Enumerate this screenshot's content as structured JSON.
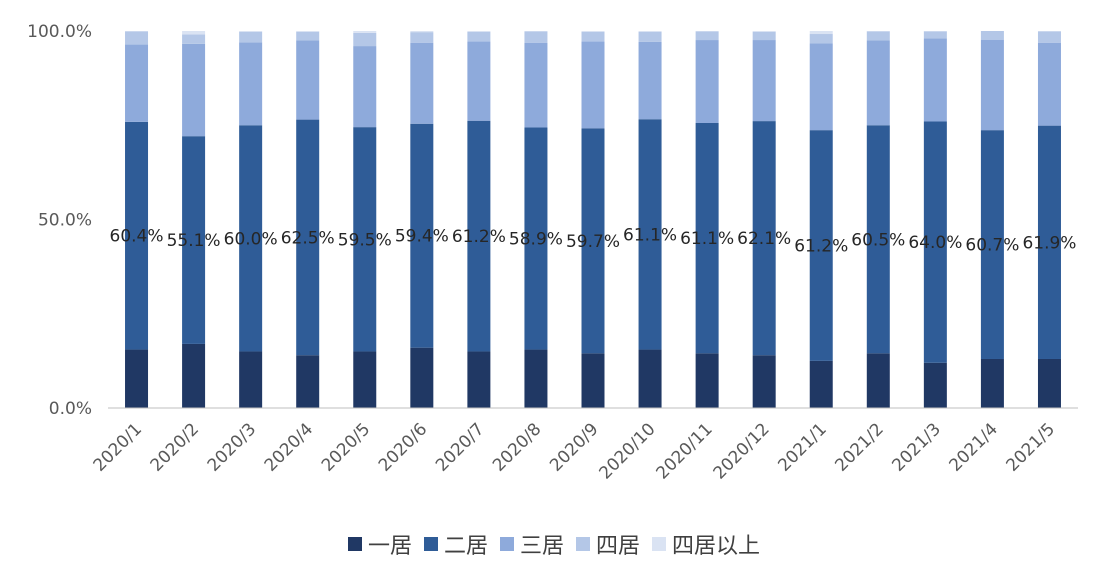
{
  "chart_data": {
    "type": "bar",
    "stacked": true,
    "normalized": true,
    "categories": [
      "2020/1",
      "2020/2",
      "2020/3",
      "2020/4",
      "2020/5",
      "2020/6",
      "2020/7",
      "2020/8",
      "2020/9",
      "2020/10",
      "2020/11",
      "2020/12",
      "2021/1",
      "2021/2",
      "2021/3",
      "2021/4",
      "2021/5"
    ],
    "series": [
      {
        "name": "一居",
        "color": "#203864",
        "values": [
          15.5,
          17.0,
          15.0,
          14.0,
          15.0,
          16.0,
          15.0,
          15.5,
          14.5,
          15.5,
          14.5,
          14.0,
          12.5,
          14.5,
          12.0,
          13.0,
          13.0
        ]
      },
      {
        "name": "二居",
        "color": "#2F5C97",
        "values": [
          60.4,
          55.1,
          60.0,
          62.5,
          59.5,
          59.4,
          61.2,
          58.9,
          59.7,
          61.1,
          61.1,
          62.1,
          61.2,
          60.5,
          64.0,
          60.7,
          61.9
        ]
      },
      {
        "name": "三居",
        "color": "#8EAADB",
        "values": [
          20.5,
          24.5,
          22.0,
          21.0,
          21.5,
          21.5,
          21.0,
          22.5,
          23.0,
          20.5,
          22.0,
          21.5,
          23.0,
          22.5,
          22.0,
          24.0,
          22.0
        ]
      },
      {
        "name": "四居",
        "color": "#B4C7E7",
        "values": [
          3.5,
          2.5,
          2.8,
          2.3,
          3.5,
          2.8,
          2.6,
          3.0,
          2.6,
          2.7,
          2.3,
          2.2,
          2.5,
          2.4,
          1.9,
          2.3,
          3.0
        ]
      },
      {
        "name": "四居以上",
        "color": "#DAE3F3",
        "values": [
          0.1,
          0.9,
          0.2,
          0.2,
          0.5,
          0.3,
          0.2,
          0.1,
          0.2,
          0.2,
          0.1,
          0.2,
          0.8,
          0.1,
          0.1,
          0.0,
          0.1
        ]
      }
    ],
    "data_labels": [
      "60.4%",
      "55.1%",
      "60.0%",
      "62.5%",
      "59.5%",
      "59.4%",
      "61.2%",
      "58.9%",
      "59.7%",
      "61.1%",
      "61.1%",
      "62.1%",
      "61.2%",
      "60.5%",
      "64.0%",
      "60.7%",
      "61.9%"
    ],
    "y_ticks": [
      "0.0%",
      "50.0%",
      "100.0%"
    ],
    "ylim": [
      0,
      100
    ],
    "grid": false,
    "legend_position": "bottom"
  }
}
